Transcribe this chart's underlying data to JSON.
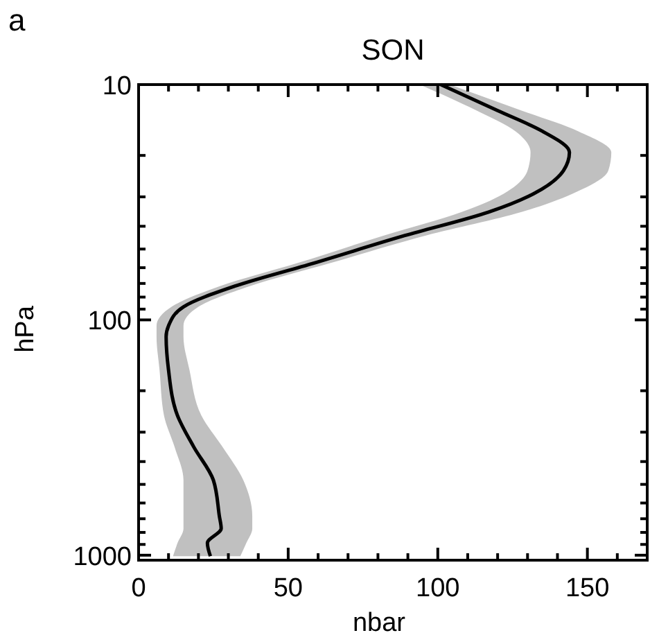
{
  "chart_data": {
    "type": "line",
    "orientation": "horizontal",
    "title": "SON",
    "xlabel": "nbar",
    "ylabel": "hPa",
    "annotations": [
      "a"
    ],
    "log": "y",
    "xlim": [
      0,
      170
    ],
    "ylim": [
      1050,
      10
    ],
    "xticks": [
      0,
      {
        "value": 10,
        "label": null
      },
      {
        "value": 20,
        "label": null
      },
      {
        "value": 30,
        "label": null
      },
      {
        "value": 40,
        "label": null
      },
      50,
      {
        "value": 60,
        "label": null
      },
      {
        "value": 70,
        "label": null
      },
      {
        "value": 80,
        "label": null
      },
      {
        "value": 90,
        "label": null
      },
      100,
      {
        "value": 110,
        "label": null
      },
      {
        "value": 120,
        "label": null
      },
      {
        "value": 130,
        "label": null
      },
      {
        "value": 140,
        "label": null
      },
      150,
      {
        "value": 160,
        "label": null
      }
    ],
    "yticks": [
      10,
      {
        "value": 20,
        "label": null
      },
      {
        "value": 30,
        "label": null
      },
      {
        "value": 40,
        "label": null
      },
      {
        "value": 50,
        "label": null
      },
      {
        "value": 60,
        "label": null
      },
      {
        "value": 70,
        "label": null
      },
      {
        "value": 80,
        "label": null
      },
      {
        "value": 90,
        "label": null
      },
      100,
      {
        "value": 200,
        "label": null
      },
      {
        "value": 300,
        "label": null
      },
      {
        "value": 400,
        "label": null
      },
      {
        "value": 500,
        "label": null
      },
      {
        "value": 600,
        "label": null
      },
      {
        "value": 700,
        "label": null
      },
      {
        "value": 800,
        "label": null
      },
      {
        "value": 900,
        "label": null
      },
      1000
    ],
    "grid": false,
    "marker": "none",
    "line_style": "solid",
    "x": [
      10,
      12.9,
      15.8,
      19.4,
      23.2,
      29.1,
      34.8,
      43.8,
      57.4,
      72,
      88,
      106,
      118,
      163,
      255,
      346,
      480,
      683,
      770,
      888,
      1010
    ],
    "series": [
      {
        "color": "#000000",
        "values": [
          101,
          120,
          135,
          144,
          142,
          132,
          117,
          89,
          58.5,
          32,
          15,
          10,
          9.2,
          10,
          13,
          18.4,
          25,
          27,
          27.6,
          23,
          24
        ],
        "lower": [
          94,
          113,
          126,
          131,
          130,
          122,
          108,
          82,
          53,
          27,
          11,
          6,
          6,
          7,
          8.5,
          12,
          15,
          15,
          15,
          13,
          11.5
        ],
        "upper": [
          104,
          128,
          147,
          158,
          157,
          145,
          128,
          96,
          64,
          37,
          20,
          15,
          15,
          17,
          21,
          28,
          35,
          38,
          38,
          36,
          34
        ]
      }
    ]
  }
}
